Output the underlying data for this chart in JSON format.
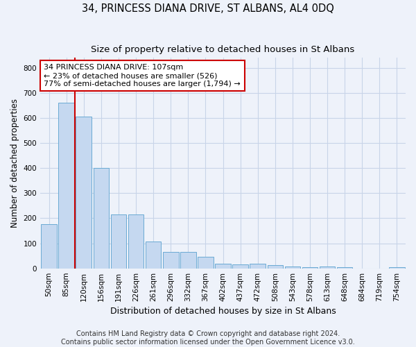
{
  "title": "34, PRINCESS DIANA DRIVE, ST ALBANS, AL4 0DQ",
  "subtitle": "Size of property relative to detached houses in St Albans",
  "xlabel": "Distribution of detached houses by size in St Albans",
  "ylabel": "Number of detached properties",
  "footer1": "Contains HM Land Registry data © Crown copyright and database right 2024.",
  "footer2": "Contains public sector information licensed under the Open Government Licence v3.0.",
  "bar_labels": [
    "50sqm",
    "85sqm",
    "120sqm",
    "156sqm",
    "191sqm",
    "226sqm",
    "261sqm",
    "296sqm",
    "332sqm",
    "367sqm",
    "402sqm",
    "437sqm",
    "472sqm",
    "508sqm",
    "543sqm",
    "578sqm",
    "613sqm",
    "648sqm",
    "684sqm",
    "719sqm",
    "754sqm"
  ],
  "bar_values": [
    175,
    660,
    605,
    400,
    215,
    215,
    107,
    65,
    65,
    45,
    18,
    15,
    18,
    13,
    7,
    5,
    7,
    5,
    0,
    0,
    5
  ],
  "bar_color": "#c5d8f0",
  "bar_edge_color": "#6aaad4",
  "annotation_text": "34 PRINCESS DIANA DRIVE: 107sqm\n← 23% of detached houses are smaller (526)\n77% of semi-detached houses are larger (1,794) →",
  "annotation_box_color": "#ffffff",
  "annotation_box_edge": "#cc0000",
  "annotation_text_color": "#000000",
  "vline_color": "#cc0000",
  "vline_x": 1.5,
  "ylim": [
    0,
    840
  ],
  "yticks": [
    0,
    100,
    200,
    300,
    400,
    500,
    600,
    700,
    800
  ],
  "grid_color": "#c8d4e8",
  "background_color": "#eef2fa",
  "title_fontsize": 10.5,
  "subtitle_fontsize": 9.5,
  "xlabel_fontsize": 9,
  "ylabel_fontsize": 8.5,
  "tick_fontsize": 7.5,
  "annotation_fontsize": 8,
  "footer_fontsize": 7
}
